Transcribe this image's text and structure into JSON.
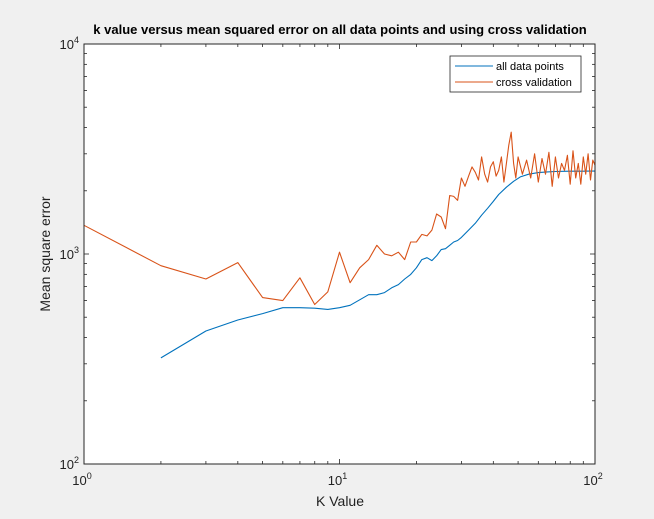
{
  "chart_data": {
    "type": "line",
    "title": "k value versus mean squared error on all data points and using cross validation",
    "xlabel": "K Value",
    "ylabel": "Mean square error",
    "xscale": "log",
    "yscale": "log",
    "xlim": [
      1,
      100
    ],
    "ylim": [
      100,
      10000
    ],
    "grid": false,
    "legend_location": "top-right",
    "x_ticks": [
      {
        "base": "10",
        "exp": "0",
        "value": 1
      },
      {
        "base": "10",
        "exp": "1",
        "value": 10
      },
      {
        "base": "10",
        "exp": "2",
        "value": 100
      }
    ],
    "y_ticks": [
      {
        "base": "10",
        "exp": "2",
        "value": 100
      },
      {
        "base": "10",
        "exp": "3",
        "value": 1000
      },
      {
        "base": "10",
        "exp": "4",
        "value": 10000
      }
    ],
    "series": [
      {
        "name": "all data points",
        "color": "#0072bd",
        "x": [
          2,
          3,
          4,
          5,
          6,
          7,
          8,
          9,
          10,
          11,
          12,
          13,
          14,
          15,
          16,
          17,
          18,
          19,
          20,
          21,
          22,
          23,
          24,
          25,
          26,
          27,
          28,
          29,
          30,
          32,
          34,
          36,
          38,
          40,
          42,
          45,
          48,
          51,
          55,
          60,
          65,
          70,
          75,
          80,
          85,
          90,
          95,
          100
        ],
        "y": [
          320,
          430,
          485,
          520,
          555,
          555,
          552,
          545,
          555,
          570,
          605,
          640,
          640,
          655,
          690,
          715,
          760,
          800,
          860,
          940,
          960,
          930,
          980,
          1050,
          1060,
          1100,
          1140,
          1160,
          1200,
          1300,
          1400,
          1530,
          1650,
          1780,
          1920,
          2080,
          2220,
          2330,
          2400,
          2440,
          2460,
          2470,
          2475,
          2478,
          2480,
          2480,
          2482,
          2482
        ]
      },
      {
        "name": "cross validation",
        "color": "#d95319",
        "x": [
          1,
          2,
          3,
          4,
          5,
          6,
          7,
          8,
          9,
          10,
          11,
          12,
          13,
          14,
          15,
          16,
          17,
          18,
          19,
          20,
          21,
          22,
          23,
          24,
          25,
          26,
          27,
          28,
          29,
          30,
          31,
          32,
          33,
          34,
          35,
          36,
          37,
          38,
          39,
          40,
          41,
          42,
          43,
          44,
          45,
          46,
          47,
          48,
          49,
          50,
          52,
          54,
          56,
          58,
          60,
          62,
          64,
          66,
          68,
          70,
          72,
          74,
          76,
          78,
          80,
          82,
          84,
          86,
          88,
          90,
          92,
          94,
          96,
          98,
          100
        ],
        "y": [
          1370,
          880,
          760,
          910,
          620,
          600,
          770,
          575,
          660,
          1020,
          730,
          860,
          940,
          1100,
          1000,
          980,
          1020,
          940,
          1140,
          1140,
          1240,
          1220,
          1300,
          1550,
          1500,
          1320,
          1900,
          1880,
          1800,
          2300,
          2100,
          2350,
          2600,
          2450,
          2250,
          2900,
          2400,
          2200,
          2600,
          2750,
          2350,
          2500,
          2900,
          2200,
          2700,
          3300,
          3800,
          2700,
          2300,
          2900,
          2400,
          2800,
          2300,
          3000,
          2200,
          2850,
          2400,
          3050,
          2100,
          2900,
          2300,
          2700,
          2500,
          2950,
          2150,
          3100,
          2300,
          2700,
          2150,
          2900,
          2400,
          3000,
          2250,
          2800,
          2650
        ]
      }
    ]
  }
}
